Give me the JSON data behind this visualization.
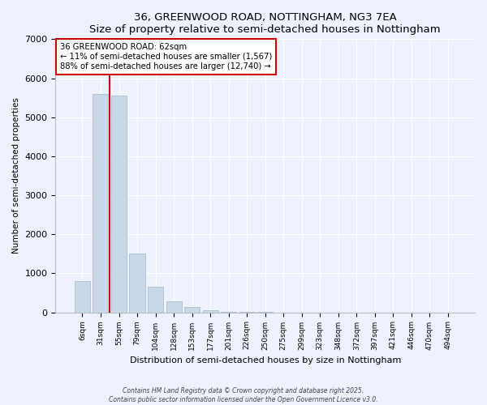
{
  "title1": "36, GREENWOOD ROAD, NOTTINGHAM, NG3 7EA",
  "title2": "Size of property relative to semi-detached houses in Nottingham",
  "xlabel": "Distribution of semi-detached houses by size in Nottingham",
  "ylabel": "Number of semi-detached properties",
  "bin_labels": [
    "6sqm",
    "31sqm",
    "55sqm",
    "79sqm",
    "104sqm",
    "128sqm",
    "153sqm",
    "177sqm",
    "201sqm",
    "226sqm",
    "250sqm",
    "275sqm",
    "299sqm",
    "323sqm",
    "348sqm",
    "372sqm",
    "397sqm",
    "421sqm",
    "446sqm",
    "470sqm",
    "494sqm"
  ],
  "bar_heights": [
    800,
    5600,
    5550,
    1500,
    650,
    275,
    130,
    50,
    20,
    5,
    2,
    0,
    0,
    0,
    0,
    0,
    0,
    0,
    0,
    0,
    0
  ],
  "bar_color": "#c8d8e8",
  "bar_edge_color": "#a0b8cc",
  "pct_smaller": "11%",
  "pct_larger": "88%",
  "count_smaller": "1,567",
  "count_larger": "12,740",
  "vline_color": "#cc0000",
  "annotation_box_edge": "#cc0000",
  "ylim": [
    0,
    7000
  ],
  "yticks": [
    0,
    1000,
    2000,
    3000,
    4000,
    5000,
    6000,
    7000
  ],
  "footer1": "Contains HM Land Registry data © Crown copyright and database right 2025.",
  "footer2": "Contains public sector information licensed under the Open Government Licence v3.0.",
  "bg_color": "#eef2ff",
  "plot_bg_color": "#eef2ff",
  "vline_pos": 1.5
}
